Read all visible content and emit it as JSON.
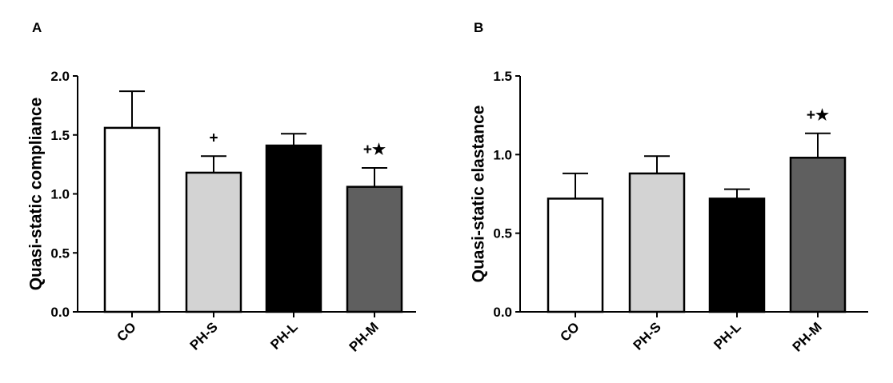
{
  "chart_data": [
    {
      "type": "bar",
      "panel_label": "A",
      "title": "",
      "xlabel": "",
      "ylabel": "Quasi-static compliance",
      "ylim": [
        0,
        2.0
      ],
      "yticks": [
        "0.0",
        "0.5",
        "1.0",
        "1.5",
        "2.0"
      ],
      "ytick_values": [
        0,
        0.5,
        1.0,
        1.5,
        2.0
      ],
      "categories": [
        "CO",
        "PH-S",
        "PH-L",
        "PH-M"
      ],
      "values": [
        1.56,
        1.18,
        1.41,
        1.06
      ],
      "error_upper": [
        1.87,
        1.32,
        1.51,
        1.22
      ],
      "colors": [
        "#ffffff",
        "#d3d3d3",
        "#000000",
        "#5f5f5f"
      ],
      "annotations": [
        "",
        "+",
        "",
        "+★"
      ],
      "grid": false
    },
    {
      "type": "bar",
      "panel_label": "B",
      "title": "",
      "xlabel": "",
      "ylabel": "Quasi-static elastance",
      "ylim": [
        0,
        1.5
      ],
      "yticks": [
        "0.0",
        "0.5",
        "1.0",
        "1.5"
      ],
      "ytick_values": [
        0,
        0.5,
        1.0,
        1.5
      ],
      "categories": [
        "CO",
        "PH-S",
        "PH-L",
        "PH-M"
      ],
      "values": [
        0.72,
        0.88,
        0.72,
        0.98
      ],
      "error_upper": [
        0.88,
        0.99,
        0.78,
        1.135
      ],
      "colors": [
        "#ffffff",
        "#d3d3d3",
        "#000000",
        "#5f5f5f"
      ],
      "annotations": [
        "",
        "",
        "",
        "+★"
      ],
      "grid": false
    }
  ]
}
